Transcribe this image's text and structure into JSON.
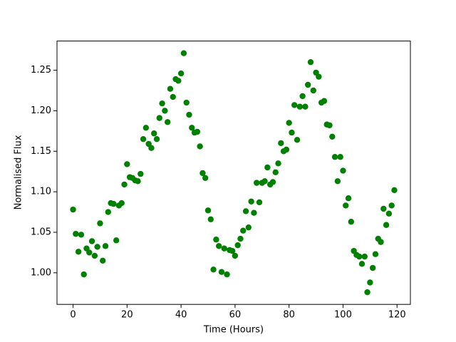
{
  "chart_data": {
    "type": "scatter",
    "xlabel": "Time (Hours)",
    "ylabel": "Normalised Flux",
    "color": "#008000",
    "x": [
      0,
      1,
      2,
      3,
      4,
      5,
      6,
      7,
      8,
      9,
      10,
      11,
      12,
      13,
      14,
      15,
      16,
      17,
      18,
      19,
      20,
      21,
      22,
      23,
      24,
      25,
      26,
      27,
      28,
      29,
      30,
      31,
      32,
      33,
      34,
      35,
      36,
      37,
      38,
      39,
      40,
      41,
      42,
      43,
      44,
      45,
      46,
      47,
      48,
      49,
      50,
      51,
      52,
      53,
      54,
      55,
      56,
      57,
      58,
      59,
      60,
      61,
      62,
      63,
      64,
      65,
      66,
      67,
      68,
      69,
      70,
      71,
      72,
      73,
      74,
      75,
      76,
      77,
      78,
      79,
      80,
      81,
      82,
      83,
      84,
      85,
      86,
      87,
      88,
      89,
      90,
      91,
      92,
      93,
      94,
      95,
      96,
      97,
      98,
      99,
      100,
      101,
      102,
      103,
      104,
      105,
      106,
      107,
      108,
      109,
      110,
      111,
      112,
      113,
      114,
      115,
      116,
      117,
      118,
      119
    ],
    "values": [
      1.078,
      1.048,
      1.026,
      1.047,
      0.998,
      1.03,
      1.025,
      1.039,
      1.021,
      1.032,
      1.061,
      1.015,
      1.033,
      1.075,
      1.086,
      1.085,
      1.04,
      1.083,
      1.086,
      1.109,
      1.134,
      1.118,
      1.117,
      1.114,
      1.113,
      1.122,
      1.165,
      1.179,
      1.159,
      1.154,
      1.172,
      1.165,
      1.191,
      1.209,
      1.2,
      1.186,
      1.227,
      1.217,
      1.239,
      1.237,
      1.246,
      1.271,
      1.21,
      1.195,
      1.179,
      1.173,
      1.174,
      1.156,
      1.123,
      1.117,
      1.077,
      1.066,
      1.004,
      1.041,
      1.033,
      1.001,
      1.03,
      0.998,
      1.028,
      1.027,
      1.021,
      1.034,
      1.042,
      1.052,
      1.076,
      1.056,
      1.088,
      1.074,
      1.111,
      1.087,
      1.111,
      1.113,
      1.13,
      1.109,
      1.112,
      1.124,
      1.135,
      1.16,
      1.15,
      1.152,
      1.185,
      1.173,
      1.207,
      1.164,
      1.205,
      1.218,
      1.205,
      1.232,
      1.26,
      1.225,
      1.247,
      1.242,
      1.21,
      1.212,
      1.183,
      1.182,
      1.168,
      1.143,
      1.113,
      1.143,
      1.126,
      1.083,
      1.092,
      1.063,
      1.027,
      1.022,
      1.02,
      1.011,
      1.02,
      0.976,
      0.988,
      1.006,
      1.023,
      1.042,
      1.038,
      1.079,
      1.059,
      1.073,
      1.083,
      1.102
    ],
    "xlim": [
      -5.95,
      124.95
    ],
    "ylim": [
      0.961,
      1.286
    ],
    "xticks": [
      0,
      20,
      40,
      60,
      80,
      100,
      120
    ],
    "yticks": [
      {
        "value": 1.0,
        "label": "1.00"
      },
      1.05,
      {
        "value": 1.1,
        "label": "1.10"
      },
      1.15,
      {
        "value": 1.2,
        "label": "1.20"
      },
      1.25
    ]
  }
}
